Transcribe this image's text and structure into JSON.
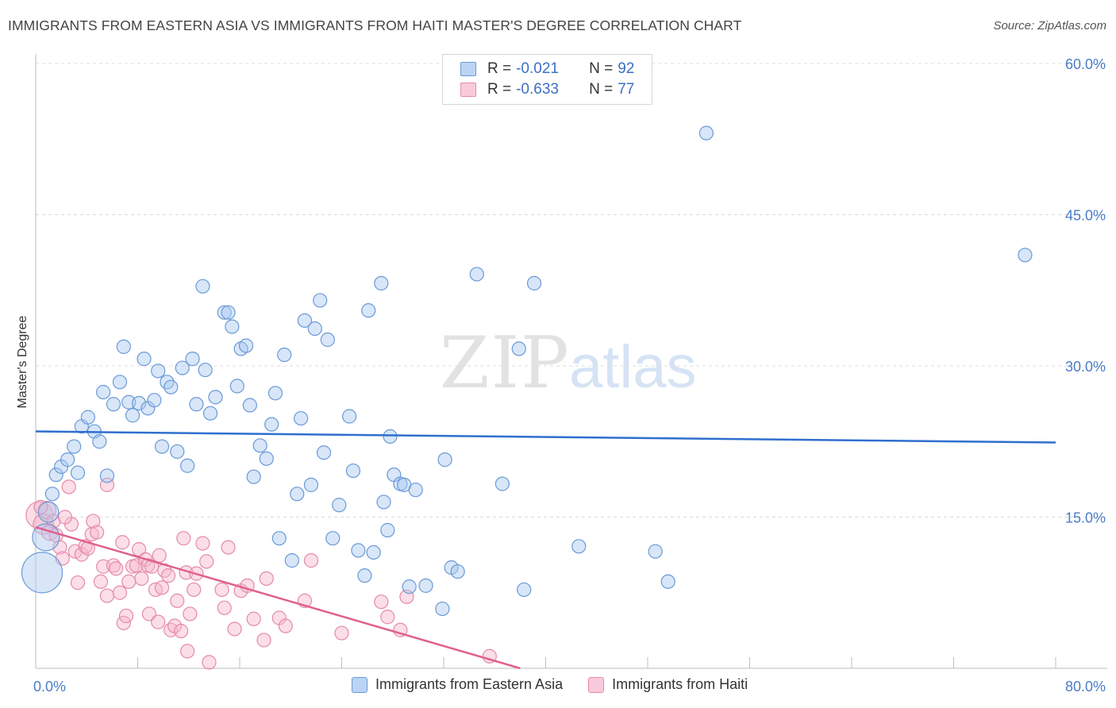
{
  "header": {
    "title": "IMMIGRANTS FROM EASTERN ASIA VS IMMIGRANTS FROM HAITI MASTER'S DEGREE CORRELATION CHART",
    "source": "Source: ZipAtlas.com"
  },
  "watermark": {
    "zip": "ZIP",
    "atlas": "atlas"
  },
  "legend": {
    "rows": [
      {
        "r_label": "R =",
        "r_value": "-0.021",
        "n_label": "N =",
        "n_value": "92"
      },
      {
        "r_label": "R =",
        "r_value": "-0.633",
        "n_label": "N =",
        "n_value": "77"
      }
    ]
  },
  "bottom_legend": {
    "series_a": "Immigrants from Eastern Asia",
    "series_b": "Immigrants from Haiti"
  },
  "colors": {
    "blue_fill": "#a8c8f0",
    "blue_stroke": "#6a9ad6",
    "blue_line": "#2f6fce",
    "pink_fill": "#f6b6cb",
    "pink_stroke": "#e58aa8",
    "pink_line": "#e0608e",
    "grid": "#dcdcdc",
    "tick_text": "#4a7cc9"
  },
  "chart_data": {
    "type": "scatter",
    "title": "IMMIGRANTS FROM EASTERN ASIA VS IMMIGRANTS FROM HAITI MASTER'S DEGREE CORRELATION CHART",
    "xlabel": "",
    "ylabel": "Master's Degree",
    "xlim": [
      0,
      80
    ],
    "ylim": [
      0,
      60
    ],
    "x_tick_labels": [
      "0.0%",
      "80.0%"
    ],
    "y_ticks": [
      15,
      30,
      45,
      60
    ],
    "y_tick_labels": [
      "15.0%",
      "30.0%",
      "45.0%",
      "60.0%"
    ],
    "grid": true,
    "legend_placement": "top-center",
    "series": [
      {
        "name": "Immigrants from Eastern Asia",
        "R": -0.021,
        "N": 92,
        "trend": {
          "x": [
            0,
            80
          ],
          "y": [
            23.5,
            22.4
          ]
        },
        "points": [
          [
            0.5,
            9.5,
            3
          ],
          [
            0.8,
            13,
            2
          ],
          [
            1.0,
            15.5,
            1.5
          ],
          [
            1.3,
            17.3,
            1
          ],
          [
            1.6,
            19.2,
            1
          ],
          [
            2.0,
            20.0,
            1
          ],
          [
            2.5,
            20.7,
            1
          ],
          [
            3.0,
            22.0,
            1
          ],
          [
            3.3,
            19.4,
            1
          ],
          [
            3.6,
            24.0,
            1
          ],
          [
            4.1,
            24.9,
            1
          ],
          [
            4.6,
            23.5,
            1
          ],
          [
            5.0,
            22.5,
            1
          ],
          [
            5.3,
            27.4,
            1
          ],
          [
            5.6,
            19.1,
            1
          ],
          [
            6.1,
            26.2,
            1
          ],
          [
            6.6,
            28.4,
            1
          ],
          [
            6.9,
            31.9,
            1
          ],
          [
            7.3,
            26.4,
            1
          ],
          [
            7.6,
            25.1,
            1
          ],
          [
            8.1,
            26.3,
            1
          ],
          [
            8.5,
            30.7,
            1
          ],
          [
            8.8,
            25.8,
            1
          ],
          [
            9.3,
            26.6,
            1
          ],
          [
            9.6,
            29.5,
            1
          ],
          [
            9.9,
            22.0,
            1
          ],
          [
            10.3,
            28.4,
            1
          ],
          [
            10.6,
            27.9,
            1
          ],
          [
            11.1,
            21.5,
            1
          ],
          [
            11.5,
            29.8,
            1
          ],
          [
            11.9,
            20.1,
            1
          ],
          [
            12.3,
            30.7,
            1
          ],
          [
            12.6,
            26.2,
            1
          ],
          [
            13.1,
            37.9,
            1
          ],
          [
            13.3,
            29.6,
            1
          ],
          [
            13.7,
            25.3,
            1
          ],
          [
            14.1,
            26.9,
            1
          ],
          [
            14.8,
            35.3,
            1
          ],
          [
            15.1,
            35.3,
            1
          ],
          [
            15.4,
            33.9,
            1
          ],
          [
            15.8,
            28.0,
            1
          ],
          [
            16.1,
            31.7,
            1
          ],
          [
            16.5,
            32.0,
            1
          ],
          [
            16.8,
            26.1,
            1
          ],
          [
            17.1,
            19.0,
            1
          ],
          [
            17.6,
            22.1,
            1
          ],
          [
            18.1,
            20.8,
            1
          ],
          [
            18.5,
            24.2,
            1
          ],
          [
            18.8,
            27.3,
            1
          ],
          [
            19.1,
            12.9,
            1
          ],
          [
            19.5,
            31.1,
            1
          ],
          [
            20.1,
            10.7,
            1
          ],
          [
            20.5,
            17.3,
            1
          ],
          [
            20.8,
            24.8,
            1
          ],
          [
            21.1,
            34.5,
            1
          ],
          [
            21.6,
            18.2,
            1
          ],
          [
            21.9,
            33.7,
            1
          ],
          [
            22.3,
            36.5,
            1
          ],
          [
            22.6,
            21.4,
            1
          ],
          [
            22.9,
            32.6,
            1
          ],
          [
            23.3,
            12.9,
            1
          ],
          [
            23.8,
            16.2,
            1
          ],
          [
            24.6,
            25.0,
            1
          ],
          [
            24.9,
            19.6,
            1
          ],
          [
            25.3,
            11.7,
            1
          ],
          [
            25.8,
            9.2,
            1
          ],
          [
            26.1,
            35.5,
            1
          ],
          [
            26.5,
            11.5,
            1
          ],
          [
            27.1,
            38.2,
            1
          ],
          [
            27.3,
            16.5,
            1
          ],
          [
            27.6,
            13.7,
            1
          ],
          [
            27.8,
            23.0,
            1
          ],
          [
            28.1,
            19.2,
            1
          ],
          [
            28.6,
            18.3,
            1
          ],
          [
            28.9,
            18.2,
            1
          ],
          [
            29.3,
            8.1,
            1
          ],
          [
            29.8,
            17.7,
            1
          ],
          [
            30.6,
            8.2,
            1
          ],
          [
            32.1,
            20.7,
            1
          ],
          [
            31.9,
            5.9,
            1
          ],
          [
            32.6,
            10.0,
            1
          ],
          [
            33.1,
            9.6,
            1
          ],
          [
            34.6,
            39.1,
            1
          ],
          [
            36.6,
            18.3,
            1
          ],
          [
            37.9,
            31.7,
            1
          ],
          [
            38.3,
            7.8,
            1
          ],
          [
            39.1,
            38.2,
            1
          ],
          [
            42.6,
            12.1,
            1
          ],
          [
            48.6,
            11.6,
            1
          ],
          [
            49.6,
            8.6,
            1
          ],
          [
            52.6,
            53.1,
            1
          ],
          [
            77.6,
            41.0,
            1
          ]
        ]
      },
      {
        "name": "Immigrants from Haiti",
        "R": -0.633,
        "N": 77,
        "trend": {
          "x": [
            0,
            38
          ],
          "y": [
            14.0,
            0.0
          ]
        },
        "points": [
          [
            0.3,
            15.2,
            2
          ],
          [
            0.6,
            14.3,
            1.5
          ],
          [
            0.9,
            15.7,
            1.3
          ],
          [
            1.1,
            13.5,
            1.2
          ],
          [
            1.4,
            14.6,
            1
          ],
          [
            1.6,
            13.2,
            1
          ],
          [
            1.9,
            12.0,
            1
          ],
          [
            2.1,
            10.9,
            1
          ],
          [
            2.6,
            18.0,
            1
          ],
          [
            2.8,
            14.3,
            1
          ],
          [
            3.1,
            11.6,
            1
          ],
          [
            3.3,
            8.5,
            1
          ],
          [
            3.6,
            11.3,
            1
          ],
          [
            3.9,
            12.1,
            1
          ],
          [
            4.1,
            11.9,
            1
          ],
          [
            4.4,
            13.3,
            1
          ],
          [
            4.5,
            14.6,
            1
          ],
          [
            4.8,
            13.5,
            1
          ],
          [
            5.1,
            8.6,
            1
          ],
          [
            5.3,
            10.1,
            1
          ],
          [
            5.6,
            18.2,
            1
          ],
          [
            5.6,
            7.2,
            1
          ],
          [
            6.1,
            10.2,
            1
          ],
          [
            6.3,
            9.9,
            1
          ],
          [
            6.6,
            7.5,
            1
          ],
          [
            6.9,
            4.5,
            1
          ],
          [
            7.1,
            5.2,
            1
          ],
          [
            7.3,
            8.6,
            1
          ],
          [
            7.6,
            10.1,
            1
          ],
          [
            7.9,
            10.2,
            1
          ],
          [
            8.1,
            11.8,
            1
          ],
          [
            8.3,
            8.9,
            1
          ],
          [
            8.6,
            10.8,
            1
          ],
          [
            8.8,
            10.2,
            1
          ],
          [
            8.9,
            5.4,
            1
          ],
          [
            9.1,
            10.1,
            1
          ],
          [
            9.4,
            7.8,
            1
          ],
          [
            9.6,
            4.6,
            1
          ],
          [
            9.9,
            8.0,
            1
          ],
          [
            10.1,
            9.7,
            1
          ],
          [
            10.4,
            9.2,
            1
          ],
          [
            10.6,
            3.8,
            1
          ],
          [
            10.9,
            4.2,
            1
          ],
          [
            11.1,
            6.7,
            1
          ],
          [
            11.4,
            3.7,
            1
          ],
          [
            11.6,
            12.9,
            1
          ],
          [
            11.8,
            9.5,
            1
          ],
          [
            11.9,
            1.7,
            1
          ],
          [
            12.1,
            5.4,
            1
          ],
          [
            12.4,
            7.8,
            1
          ],
          [
            12.6,
            9.4,
            1
          ],
          [
            13.1,
            12.4,
            1
          ],
          [
            13.6,
            0.6,
            1
          ],
          [
            14.6,
            7.8,
            1
          ],
          [
            14.8,
            6.0,
            1
          ],
          [
            15.1,
            12.0,
            1
          ],
          [
            15.6,
            3.9,
            1
          ],
          [
            16.1,
            7.7,
            1
          ],
          [
            16.6,
            8.2,
            1
          ],
          [
            17.1,
            4.9,
            1
          ],
          [
            18.1,
            8.9,
            1
          ],
          [
            19.1,
            5.0,
            1
          ],
          [
            19.6,
            4.2,
            1
          ],
          [
            21.1,
            6.7,
            1
          ],
          [
            21.6,
            10.7,
            1
          ],
          [
            27.1,
            6.6,
            1
          ],
          [
            27.6,
            5.1,
            1
          ],
          [
            28.6,
            3.8,
            1
          ],
          [
            29.1,
            7.1,
            1
          ],
          [
            35.6,
            1.2,
            1
          ],
          [
            0.4,
            16.0,
            1
          ],
          [
            2.3,
            15.0,
            1
          ],
          [
            6.8,
            12.5,
            1
          ],
          [
            9.7,
            11.2,
            1
          ],
          [
            13.4,
            10.6,
            1
          ],
          [
            17.9,
            2.8,
            1
          ],
          [
            24.0,
            3.5,
            1
          ]
        ]
      }
    ]
  }
}
